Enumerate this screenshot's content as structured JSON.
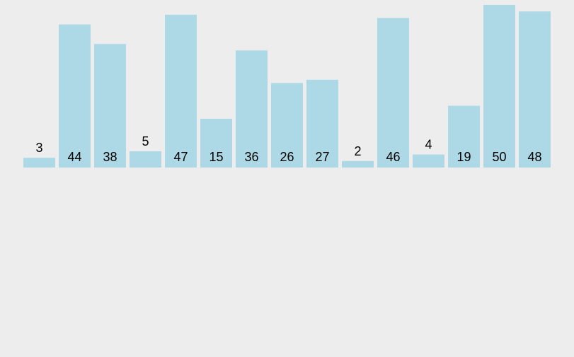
{
  "chart_data": {
    "type": "bar",
    "values": [
      3,
      44,
      38,
      5,
      47,
      15,
      36,
      26,
      27,
      2,
      46,
      4,
      19,
      50,
      48
    ],
    "ylim": [
      0,
      50
    ],
    "grid": false,
    "bar_color": "#add8e6",
    "background": "#ededed",
    "label_color": "#000000"
  }
}
